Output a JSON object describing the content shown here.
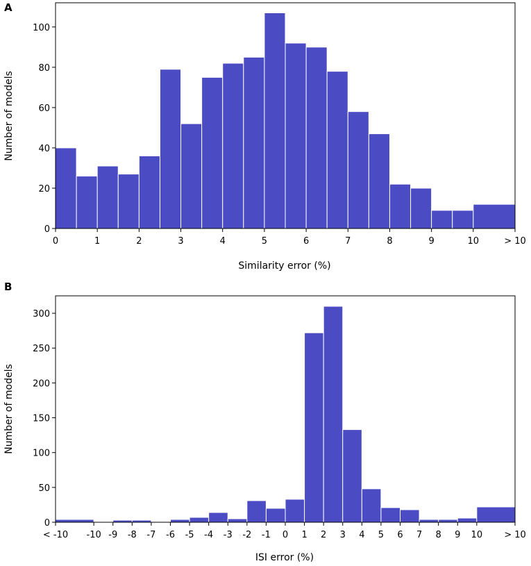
{
  "chart_data": [
    {
      "type": "bar",
      "panel_label": "A",
      "xlabel": "Similarity error (%)",
      "ylabel": "Number of models",
      "xlim": [
        0,
        11
      ],
      "ylim": [
        0,
        112
      ],
      "xticks": [
        {
          "pos": 0,
          "label": "0"
        },
        {
          "pos": 1,
          "label": "1"
        },
        {
          "pos": 2,
          "label": "2"
        },
        {
          "pos": 3,
          "label": "3"
        },
        {
          "pos": 4,
          "label": "4"
        },
        {
          "pos": 5,
          "label": "5"
        },
        {
          "pos": 6,
          "label": "6"
        },
        {
          "pos": 7,
          "label": "7"
        },
        {
          "pos": 8,
          "label": "8"
        },
        {
          "pos": 9,
          "label": "9"
        },
        {
          "pos": 10,
          "label": "10"
        },
        {
          "pos": 11,
          "label": "> 10"
        }
      ],
      "yticks": [
        0,
        20,
        40,
        60,
        80,
        100
      ],
      "bars": [
        {
          "x0": 0,
          "x1": 0.5,
          "value": 40
        },
        {
          "x0": 0.5,
          "x1": 1,
          "value": 26
        },
        {
          "x0": 1,
          "x1": 1.5,
          "value": 31
        },
        {
          "x0": 1.5,
          "x1": 2,
          "value": 27
        },
        {
          "x0": 2,
          "x1": 2.5,
          "value": 36
        },
        {
          "x0": 2.5,
          "x1": 3,
          "value": 79
        },
        {
          "x0": 3,
          "x1": 3.5,
          "value": 52
        },
        {
          "x0": 3.5,
          "x1": 4,
          "value": 75
        },
        {
          "x0": 4,
          "x1": 4.5,
          "value": 82
        },
        {
          "x0": 4.5,
          "x1": 5,
          "value": 85
        },
        {
          "x0": 5,
          "x1": 5.5,
          "value": 107
        },
        {
          "x0": 5.5,
          "x1": 6,
          "value": 92
        },
        {
          "x0": 6,
          "x1": 6.5,
          "value": 90
        },
        {
          "x0": 6.5,
          "x1": 7,
          "value": 78
        },
        {
          "x0": 7,
          "x1": 7.5,
          "value": 58
        },
        {
          "x0": 7.5,
          "x1": 8,
          "value": 47
        },
        {
          "x0": 8,
          "x1": 8.5,
          "value": 22
        },
        {
          "x0": 8.5,
          "x1": 9,
          "value": 20
        },
        {
          "x0": 9,
          "x1": 9.5,
          "value": 9
        },
        {
          "x0": 9.5,
          "x1": 10,
          "value": 9
        },
        {
          "x0": 10,
          "x1": 11,
          "value": 12
        }
      ]
    },
    {
      "type": "bar",
      "panel_label": "B",
      "xlabel": "ISI error (%)",
      "ylabel": "Number of models",
      "xlim": [
        -12,
        12
      ],
      "ylim": [
        0,
        325
      ],
      "xticks": [
        {
          "pos": -12,
          "label": "< -10"
        },
        {
          "pos": -10,
          "label": "-10"
        },
        {
          "pos": -9,
          "label": "-9"
        },
        {
          "pos": -8,
          "label": "-8"
        },
        {
          "pos": -7,
          "label": "-7"
        },
        {
          "pos": -6,
          "label": "-6"
        },
        {
          "pos": -5,
          "label": "-5"
        },
        {
          "pos": -4,
          "label": "-4"
        },
        {
          "pos": -3,
          "label": "-3"
        },
        {
          "pos": -2,
          "label": "-2"
        },
        {
          "pos": -1,
          "label": "-1"
        },
        {
          "pos": 0,
          "label": "0"
        },
        {
          "pos": 1,
          "label": "1"
        },
        {
          "pos": 2,
          "label": "2"
        },
        {
          "pos": 3,
          "label": "3"
        },
        {
          "pos": 4,
          "label": "4"
        },
        {
          "pos": 5,
          "label": "5"
        },
        {
          "pos": 6,
          "label": "6"
        },
        {
          "pos": 7,
          "label": "7"
        },
        {
          "pos": 8,
          "label": "8"
        },
        {
          "pos": 9,
          "label": "9"
        },
        {
          "pos": 10,
          "label": "10"
        },
        {
          "pos": 12,
          "label": "> 10"
        }
      ],
      "yticks": [
        0,
        50,
        100,
        150,
        200,
        250,
        300
      ],
      "bars": [
        {
          "x0": -12,
          "x1": -10,
          "value": 4
        },
        {
          "x0": -10,
          "x1": -9,
          "value": 0
        },
        {
          "x0": -9,
          "x1": -8,
          "value": 3
        },
        {
          "x0": -8,
          "x1": -7,
          "value": 3
        },
        {
          "x0": -7,
          "x1": -6,
          "value": 1
        },
        {
          "x0": -6,
          "x1": -5,
          "value": 4
        },
        {
          "x0": -5,
          "x1": -4,
          "value": 7
        },
        {
          "x0": -4,
          "x1": -3,
          "value": 14
        },
        {
          "x0": -3,
          "x1": -2,
          "value": 5
        },
        {
          "x0": -2,
          "x1": -1,
          "value": 31
        },
        {
          "x0": -1,
          "x1": 0,
          "value": 20
        },
        {
          "x0": 0,
          "x1": 1,
          "value": 33
        },
        {
          "x0": 1,
          "x1": 2,
          "value": 272
        },
        {
          "x0": 2,
          "x1": 3,
          "value": 310
        },
        {
          "x0": 3,
          "x1": 4,
          "value": 133
        },
        {
          "x0": 4,
          "x1": 5,
          "value": 48
        },
        {
          "x0": 5,
          "x1": 6,
          "value": 21
        },
        {
          "x0": 6,
          "x1": 7,
          "value": 18
        },
        {
          "x0": 7,
          "x1": 8,
          "value": 4
        },
        {
          "x0": 8,
          "x1": 9,
          "value": 4
        },
        {
          "x0": 9,
          "x1": 10,
          "value": 6
        },
        {
          "x0": 10,
          "x1": 12,
          "value": 22
        }
      ]
    }
  ],
  "colors": {
    "bar_fill": "#4b4bc3",
    "bar_edge": "#ffffff",
    "axis": "#000000"
  }
}
